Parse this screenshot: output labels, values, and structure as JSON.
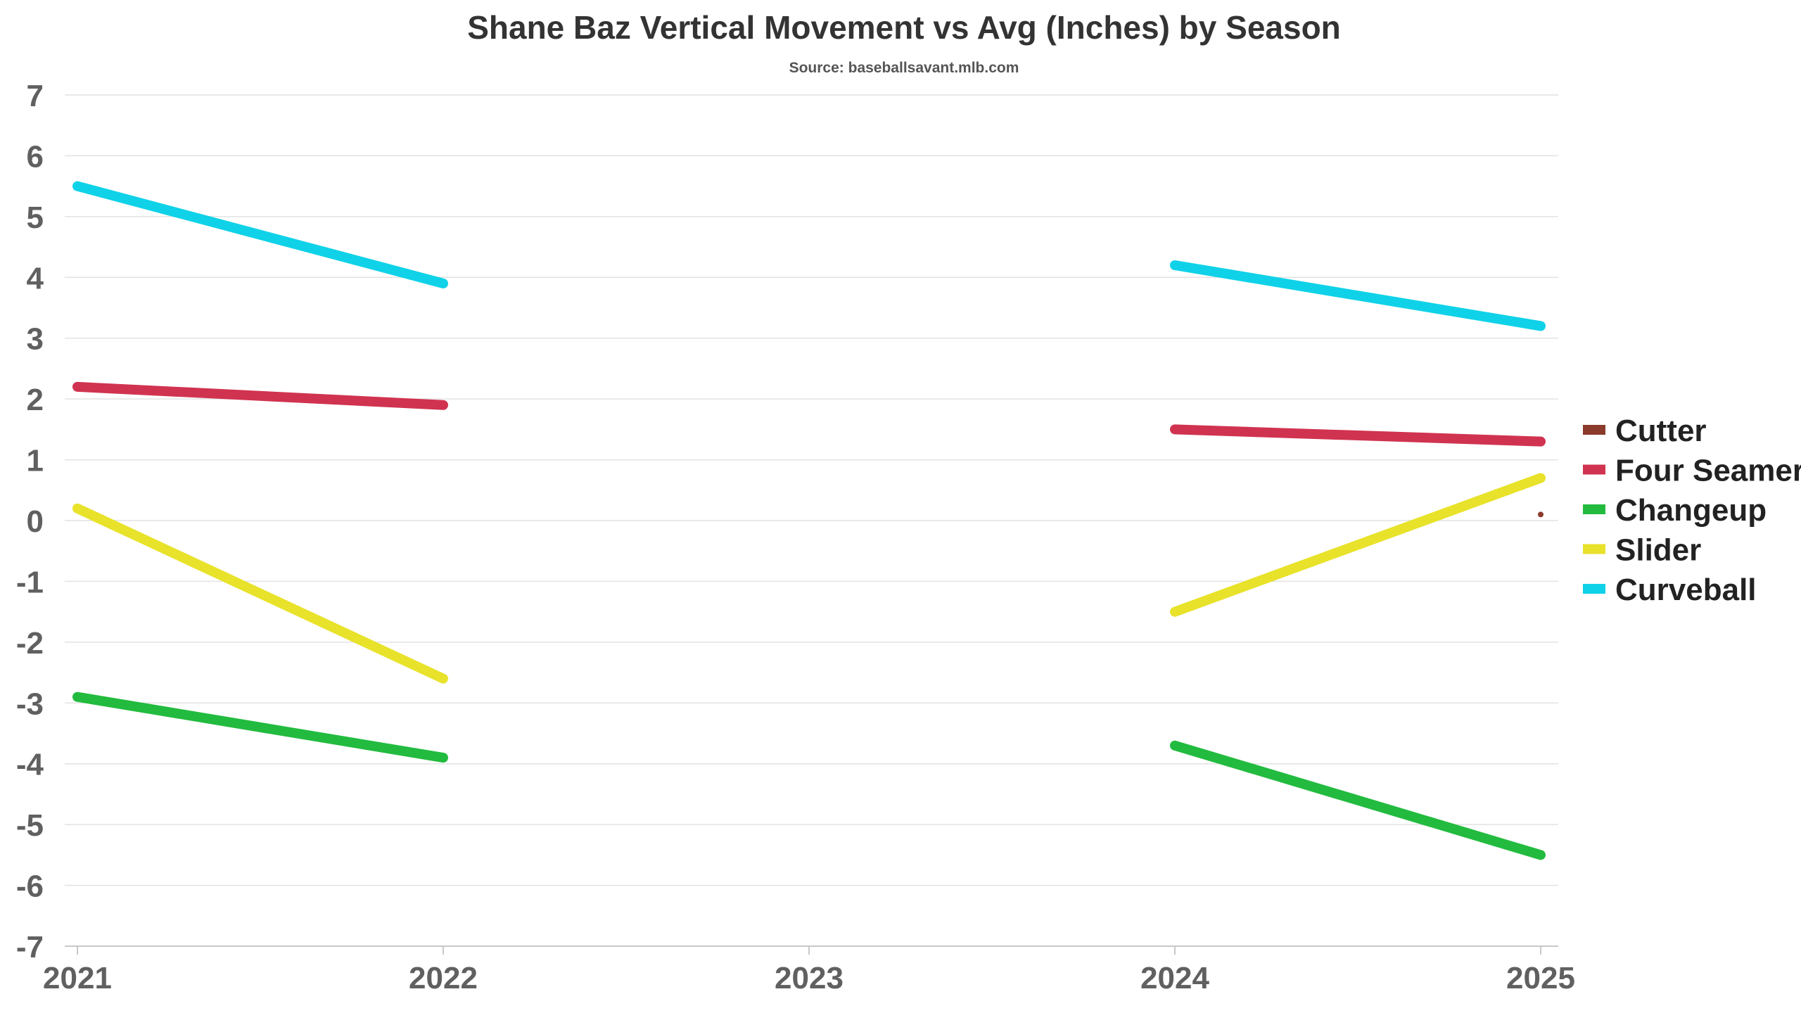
{
  "chart_data": {
    "type": "line",
    "title": "Shane Baz Vertical Movement vs Avg (Inches) by Season",
    "subtitle": "Source: baseballsavant.mlb.com",
    "xlabel": "",
    "ylabel": "",
    "x": [
      2021,
      2022,
      2023,
      2024,
      2025
    ],
    "x_tick_labels": [
      "2021",
      "2022",
      "2023",
      "2024",
      "2025"
    ],
    "ylim": [
      -7,
      7
    ],
    "y_ticks": [
      7,
      6,
      5,
      4,
      3,
      2,
      1,
      0,
      -1,
      -2,
      -3,
      -4,
      -5,
      -6,
      -7
    ],
    "y_tick_labels": [
      "7",
      "6",
      "5",
      "4",
      "3",
      "2",
      "1",
      "0",
      "-1",
      "-2",
      "-3",
      "-4",
      "-5",
      "-6",
      "-7"
    ],
    "grid": true,
    "legend_position": "right",
    "series": [
      {
        "name": "Cutter",
        "color": "#8b3a2b",
        "values": [
          null,
          null,
          null,
          null,
          0.1
        ]
      },
      {
        "name": "Four Seamer",
        "color": "#d03350",
        "values": [
          2.2,
          1.9,
          null,
          1.5,
          1.3
        ]
      },
      {
        "name": "Changeup",
        "color": "#22bb3f",
        "values": [
          -2.9,
          -3.9,
          null,
          -3.7,
          -5.5
        ]
      },
      {
        "name": "Slider",
        "color": "#e8e22a",
        "values": [
          0.2,
          -2.6,
          null,
          -1.5,
          0.7
        ]
      },
      {
        "name": "Curveball",
        "color": "#0fd2e8",
        "values": [
          5.5,
          3.9,
          null,
          4.2,
          3.2
        ]
      }
    ]
  }
}
